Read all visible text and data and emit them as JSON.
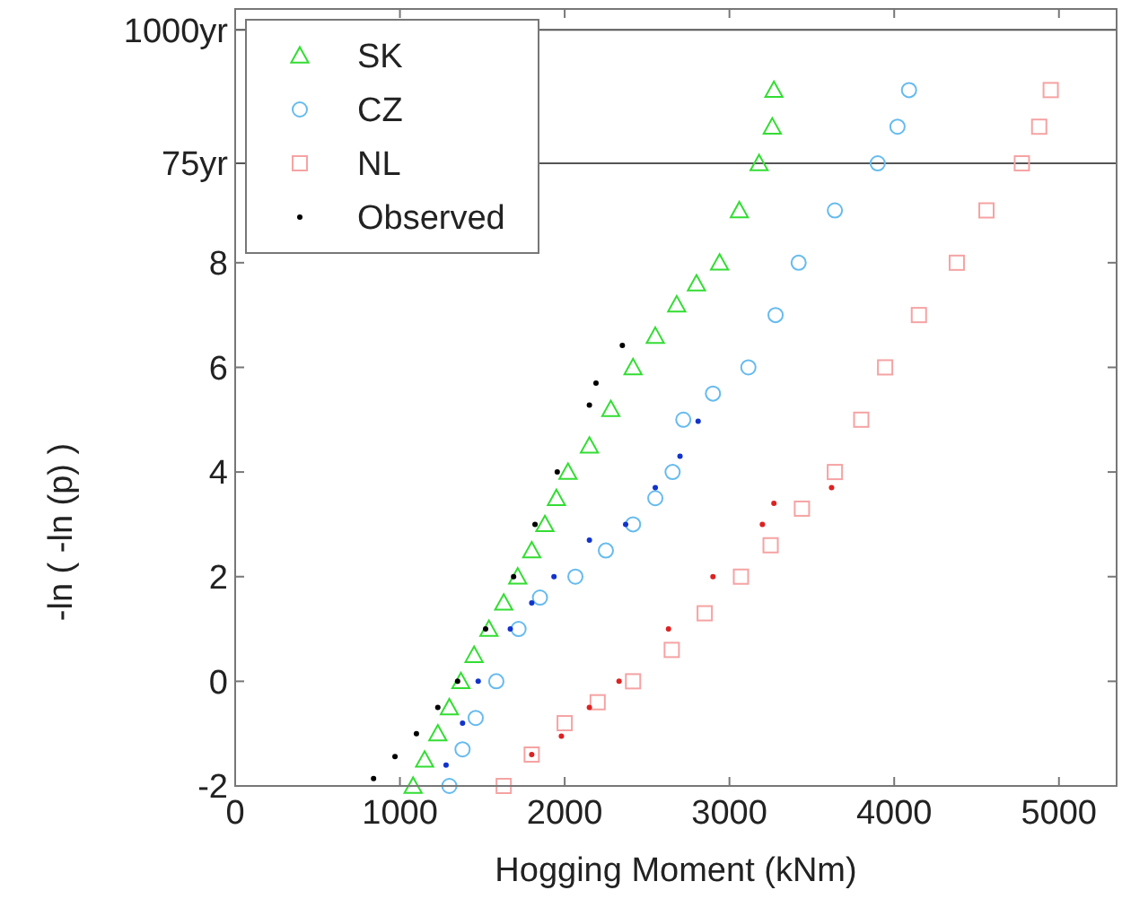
{
  "chart_data": {
    "type": "scatter",
    "xlabel": "Hogging Moment (kNm)",
    "ylabel": "-ln ( -ln (p) )",
    "xlim": [
      0,
      5350
    ],
    "xticks": [
      0,
      1000,
      2000,
      3000,
      4000,
      5000
    ],
    "ylim": [
      -2,
      12.85
    ],
    "yticks": [
      -2,
      0,
      2,
      4,
      6,
      8
    ],
    "ref_lines": [
      {
        "axis": "y",
        "value": 9.9,
        "label": "75yr",
        "color": "#555555"
      },
      {
        "axis": "y",
        "value": 12.45,
        "label": "1000yr",
        "color": "#555555"
      }
    ],
    "grid": false,
    "legend": "top left",
    "series": [
      {
        "name": "SK",
        "color": "#33dd33",
        "marker": "triangle",
        "x": [
          1080,
          1150,
          1230,
          1300,
          1370,
          1450,
          1540,
          1630,
          1715,
          1800,
          1880,
          1950,
          2020,
          2150,
          2280,
          2415,
          2550,
          2680,
          2800,
          2940,
          3060,
          3180,
          3260,
          3270
        ],
        "values": [
          -2,
          -1.5,
          -1,
          -0.5,
          0,
          0.5,
          1,
          1.5,
          2,
          2.5,
          3,
          3.5,
          4,
          4.5,
          5.2,
          6,
          6.6,
          7.2,
          7.6,
          8,
          9,
          9.9,
          10.6,
          11.3
        ]
      },
      {
        "name": "CZ",
        "color": "#66bbee",
        "marker": "circle",
        "x": [
          1300,
          1380,
          1460,
          1585,
          1720,
          1850,
          2065,
          2250,
          2415,
          2550,
          2655,
          2720,
          2900,
          3115,
          3280,
          3420,
          3640,
          3900,
          4020,
          4090
        ],
        "values": [
          -2,
          -1.3,
          -0.7,
          0,
          1,
          1.6,
          2,
          2.5,
          3,
          3.5,
          4,
          5,
          5.5,
          6,
          7,
          8,
          9,
          9.9,
          10.6,
          11.3
        ]
      },
      {
        "name": "NL",
        "color": "#f5a3a3",
        "marker": "square",
        "x": [
          1630,
          1800,
          2000,
          2200,
          2415,
          2650,
          2850,
          3070,
          3250,
          3440,
          3640,
          3800,
          3945,
          4150,
          4380,
          4560,
          4775,
          4880,
          4950
        ],
        "values": [
          -2,
          -1.4,
          -0.8,
          -0.4,
          0,
          0.6,
          1.3,
          2,
          2.6,
          3.3,
          4,
          5,
          6,
          7,
          8,
          9,
          9.9,
          10.6,
          11.3
        ]
      },
      {
        "name": "Observed",
        "color": "#000000",
        "marker": "circle",
        "x": [
          840,
          970,
          1100,
          1230,
          1350,
          1520,
          1690,
          1820,
          1955,
          2150,
          2190,
          2350,
          1280,
          1380,
          1475,
          1670,
          1800,
          1935,
          2150,
          2370,
          2550,
          2700,
          2810,
          1800,
          1980,
          2150,
          2330,
          2630,
          2900,
          3200,
          3270,
          3620
        ],
        "values": [
          -1.86,
          -1.44,
          -1,
          -0.5,
          0,
          1,
          2,
          3,
          4,
          5.28,
          5.7,
          6.42,
          -1.6,
          -0.8,
          0,
          1,
          1.5,
          2,
          2.7,
          3,
          3.7,
          4.3,
          4.97,
          -1.4,
          -1.05,
          -0.5,
          0,
          1,
          2,
          3,
          3.4,
          3.7
        ],
        "colors": [
          "#000000",
          "#000000",
          "#000000",
          "#000000",
          "#000000",
          "#000000",
          "#000000",
          "#000000",
          "#000000",
          "#000000",
          "#000000",
          "#000000",
          "#1133cc",
          "#1133cc",
          "#1133cc",
          "#1133cc",
          "#1133cc",
          "#1133cc",
          "#1133cc",
          "#1133cc",
          "#1133cc",
          "#1133cc",
          "#1133cc",
          "#dd2222",
          "#dd2222",
          "#dd2222",
          "#dd2222",
          "#dd2222",
          "#dd2222",
          "#dd2222",
          "#dd2222",
          "#dd2222"
        ]
      }
    ]
  }
}
